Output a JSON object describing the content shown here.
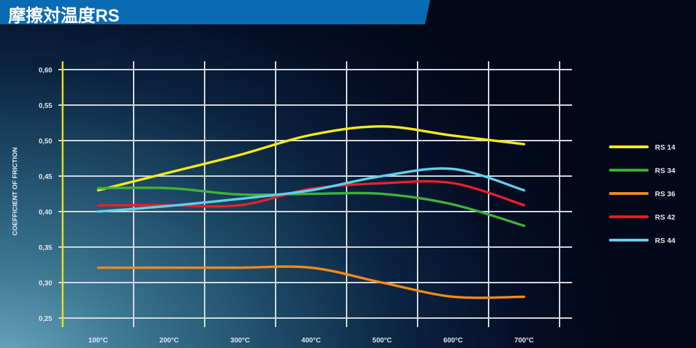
{
  "header": {
    "title": "摩擦対温度RS"
  },
  "chart_data": {
    "type": "line",
    "title": "摩擦対温度RS",
    "xlabel": "",
    "ylabel": "COEFFICIENT OF FRICTION",
    "categories": [
      "100°C",
      "200°C",
      "300°C",
      "400°C",
      "500°C",
      "600°C",
      "700°C"
    ],
    "x": [
      100,
      200,
      300,
      400,
      500,
      600,
      700
    ],
    "ylim": [
      0.25,
      0.6
    ],
    "yticks": [
      "0,60",
      "0,55",
      "0,50",
      "0,45",
      "0,40",
      "0,35",
      "0,30",
      "0,25"
    ],
    "grid": true,
    "legend_position": "right",
    "series": [
      {
        "name": "RS 14",
        "color": "#f5ea1c",
        "values": [
          0.43,
          0.455,
          0.48,
          0.508,
          0.52,
          0.507,
          0.495
        ]
      },
      {
        "name": "RS 34",
        "color": "#3fb23a",
        "values": [
          0.433,
          0.433,
          0.424,
          0.425,
          0.425,
          0.41,
          0.38
        ]
      },
      {
        "name": "RS 36",
        "color": "#f08a1c",
        "values": [
          0.321,
          0.321,
          0.321,
          0.321,
          0.3,
          0.28,
          0.28
        ]
      },
      {
        "name": "RS 42",
        "color": "#e8202a",
        "values": [
          0.409,
          0.409,
          0.409,
          0.432,
          0.44,
          0.44,
          0.409
        ]
      },
      {
        "name": "RS 44",
        "color": "#5fd0ea",
        "values": [
          0.4,
          0.408,
          0.418,
          0.43,
          0.45,
          0.46,
          0.43
        ]
      }
    ],
    "axis_color": "#e8e41a"
  }
}
